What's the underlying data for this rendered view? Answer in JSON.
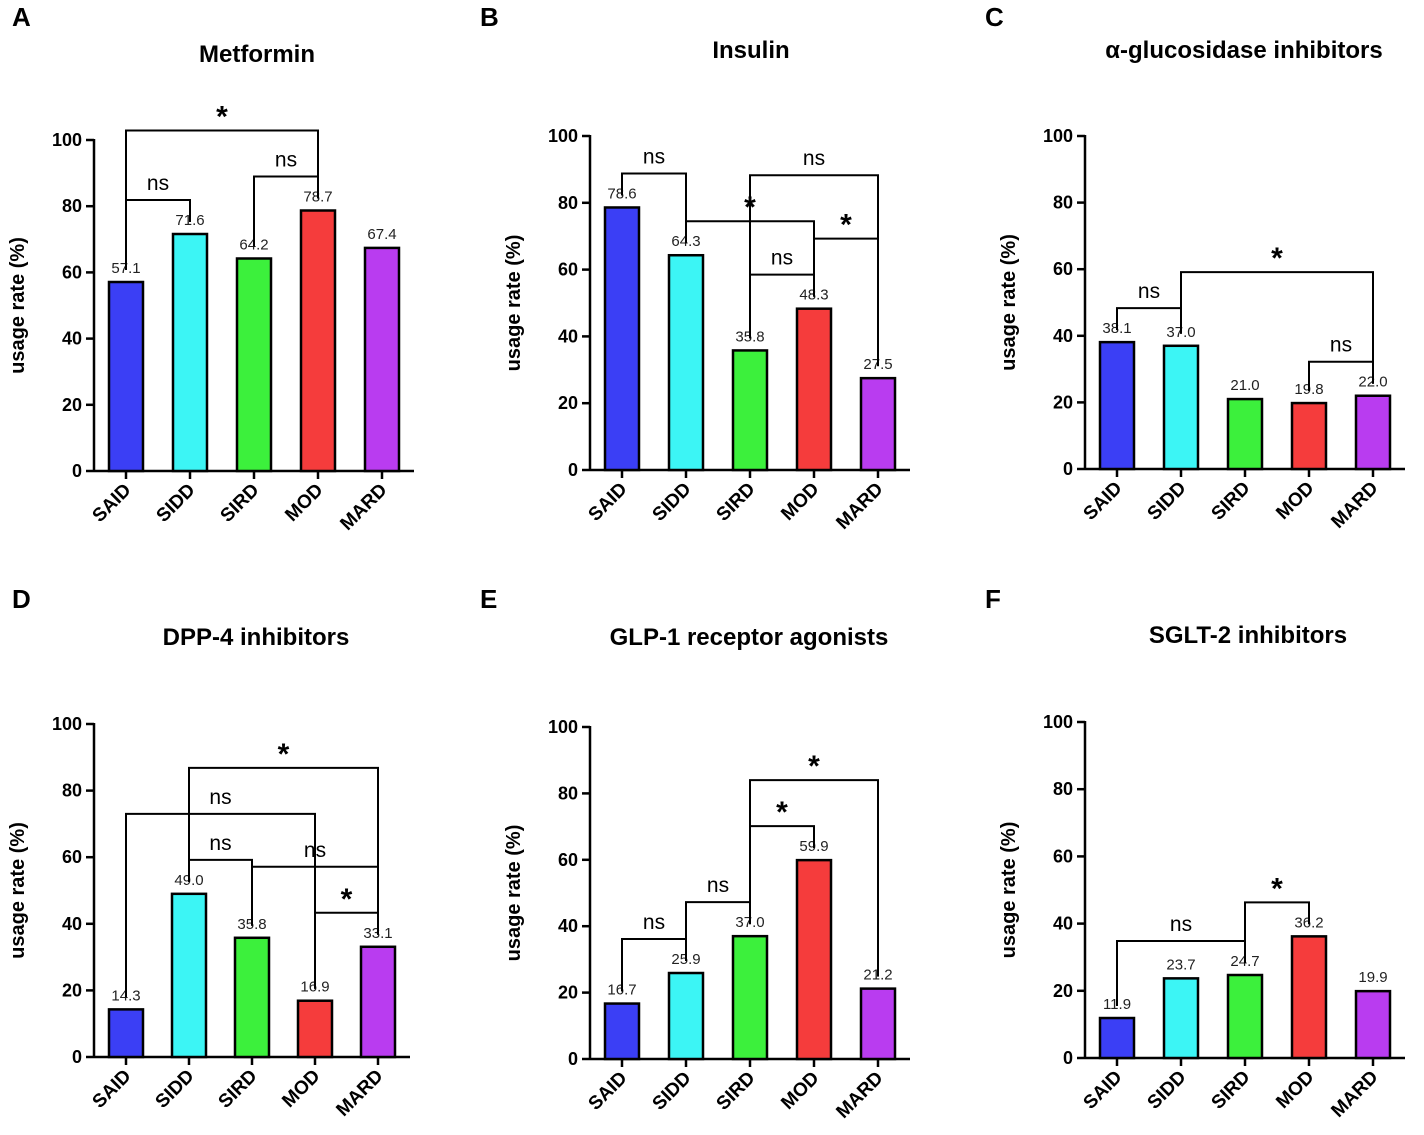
{
  "chart_data": [
    {
      "panel": "A",
      "title": "Metformin",
      "type": "bar",
      "categories": [
        "SAID",
        "SIDD",
        "SIRD",
        "MOD",
        "MARD"
      ],
      "values": [
        57.1,
        71.6,
        64.2,
        78.7,
        67.4
      ],
      "value_labels": [
        "57.1",
        "71.6",
        "64.2",
        "78.7",
        "67.4"
      ],
      "ylabel": "usage rate (%)",
      "ylim": [
        0,
        100
      ],
      "yticks": [
        0,
        20,
        40,
        60,
        80,
        100
      ],
      "comparisons": [
        {
          "from": 0,
          "to": 1,
          "label": "ns"
        },
        {
          "from": 2,
          "to": 3,
          "label": "ns"
        },
        {
          "from": 0,
          "to": 3,
          "label": "*"
        }
      ]
    },
    {
      "panel": "B",
      "title": "Insulin",
      "type": "bar",
      "categories": [
        "SAID",
        "SIDD",
        "SIRD",
        "MOD",
        "MARD"
      ],
      "values": [
        78.6,
        64.3,
        35.8,
        48.3,
        27.5
      ],
      "value_labels": [
        "78.6",
        "64.3",
        "35.8",
        "48.3",
        "27.5"
      ],
      "ylabel": "usage rate (%)",
      "ylim": [
        0,
        100
      ],
      "yticks": [
        0,
        20,
        40,
        60,
        80,
        100
      ],
      "comparisons": [
        {
          "from": 0,
          "to": 1,
          "label": "ns"
        },
        {
          "from": 1,
          "to": 3,
          "label": "*"
        },
        {
          "from": 2,
          "to": 3,
          "label": "ns"
        },
        {
          "from": 3,
          "to": 4,
          "label": "*"
        },
        {
          "from": 2,
          "to": 4,
          "label": "ns"
        }
      ]
    },
    {
      "panel": "C",
      "title": "α-glucosidase inhibitors",
      "type": "bar",
      "categories": [
        "SAID",
        "SIDD",
        "SIRD",
        "MOD",
        "MARD"
      ],
      "values": [
        38.1,
        37.0,
        21.0,
        19.8,
        22.0
      ],
      "value_labels": [
        "38.1",
        "37.0",
        "21.0",
        "19.8",
        "22.0"
      ],
      "ylabel": "usage rate (%)",
      "ylim": [
        0,
        100
      ],
      "yticks": [
        0,
        20,
        40,
        60,
        80,
        100
      ],
      "comparisons": [
        {
          "from": 0,
          "to": 1,
          "label": "ns"
        },
        {
          "from": 1,
          "to": 4,
          "label": "*"
        },
        {
          "from": 3,
          "to": 4,
          "label": "ns"
        }
      ]
    },
    {
      "panel": "D",
      "title": "DPP-4 inhibitors",
      "type": "bar",
      "categories": [
        "SAID",
        "SIDD",
        "SIRD",
        "MOD",
        "MARD"
      ],
      "values": [
        14.3,
        49.0,
        35.8,
        16.9,
        33.1
      ],
      "value_labels": [
        "14.3",
        "49.0",
        "35.8",
        "16.9",
        "33.1"
      ],
      "ylabel": "usage rate (%)",
      "ylim": [
        0,
        100
      ],
      "yticks": [
        0,
        20,
        40,
        60,
        80,
        100
      ],
      "comparisons": [
        {
          "from": 0,
          "to": 3,
          "label": "ns"
        },
        {
          "from": 1,
          "to": 4,
          "label": "*"
        },
        {
          "from": 1,
          "to": 2,
          "label": "ns"
        },
        {
          "from": 2,
          "to": 4,
          "label": "ns"
        },
        {
          "from": 3,
          "to": 4,
          "label": "*"
        }
      ]
    },
    {
      "panel": "E",
      "title": "GLP-1 receptor agonists",
      "type": "bar",
      "categories": [
        "SAID",
        "SIDD",
        "SIRD",
        "MOD",
        "MARD"
      ],
      "values": [
        16.7,
        25.9,
        37.0,
        59.9,
        21.2
      ],
      "value_labels": [
        "16.7",
        "25.9",
        "37.0",
        "59.9",
        "21.2"
      ],
      "ylabel": "usage rate (%)",
      "ylim": [
        0,
        100
      ],
      "yticks": [
        0,
        20,
        40,
        60,
        80,
        100
      ],
      "comparisons": [
        {
          "from": 0,
          "to": 1,
          "label": "ns"
        },
        {
          "from": 1,
          "to": 2,
          "label": "ns"
        },
        {
          "from": 2,
          "to": 3,
          "label": "*"
        },
        {
          "from": 2,
          "to": 4,
          "label": "*"
        }
      ]
    },
    {
      "panel": "F",
      "title": "SGLT-2 inhibitors",
      "type": "bar",
      "categories": [
        "SAID",
        "SIDD",
        "SIRD",
        "MOD",
        "MARD"
      ],
      "values": [
        11.9,
        23.7,
        24.7,
        36.2,
        19.9
      ],
      "value_labels": [
        "11.9",
        "23.7",
        "24.7",
        "36.2",
        "19.9"
      ],
      "ylabel": "usage rate (%)",
      "ylim": [
        0,
        100
      ],
      "yticks": [
        0,
        20,
        40,
        60,
        80,
        100
      ],
      "comparisons": [
        {
          "from": 0,
          "to": 2,
          "label": "ns"
        },
        {
          "from": 2,
          "to": 3,
          "label": "*"
        }
      ]
    }
  ],
  "colors": {
    "bars": [
      "#3b3ff5",
      "#3cf5f5",
      "#3cf03c",
      "#f53c3c",
      "#b93cf0"
    ],
    "axis": "#000000",
    "background": "#ffffff"
  }
}
